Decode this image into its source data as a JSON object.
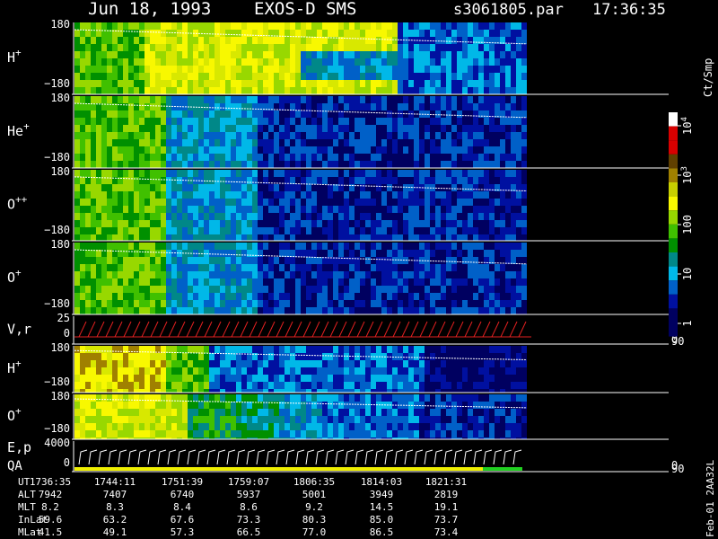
{
  "header": {
    "date": "Jun 18, 1993",
    "instrument": "EXOS-D SMS",
    "file": "s3061805.par",
    "time": "17:36:35"
  },
  "panels": [
    {
      "label": {
        "base": "H",
        "sup": "+"
      },
      "ytop": "180",
      "ybottom": "−180"
    },
    {
      "label": {
        "base": "He",
        "sup": "+"
      },
      "ytop": "180",
      "ybottom": "−180"
    },
    {
      "label": {
        "base": "O",
        "sup": "++"
      },
      "ytop": "180",
      "ybottom": "−180"
    },
    {
      "label": {
        "base": "O",
        "sup": "+"
      },
      "ytop": "180",
      "ybottom": "−180"
    },
    {
      "label": {
        "base": "V,r"
      },
      "ytop": "25",
      "ybottom": "0",
      "y2top": "90",
      "y2bottom": "0"
    },
    {
      "label": {
        "base": "H",
        "sup": "+"
      },
      "ytop": "180",
      "ybottom": "−180"
    },
    {
      "label": {
        "base": "O",
        "sup": "+"
      },
      "ytop": "180",
      "ybottom": "−180"
    },
    {
      "label": {
        "base": "E,p",
        "line2": "QA"
      },
      "ytop": "4000",
      "ybottom": "0",
      "y2top": "90",
      "y2bottom": "0"
    }
  ],
  "colorbar": {
    "title": "Ct/Smp",
    "ticks": [
      {
        "base": "10",
        "exp": "4"
      },
      {
        "base": "10",
        "exp": "3"
      },
      {
        "base": "100"
      },
      {
        "base": "10"
      },
      {
        "base": "1"
      }
    ]
  },
  "table": {
    "row_labels": [
      "UT",
      "ALT",
      "MLT",
      "InLat",
      "MLat"
    ],
    "rows": [
      [
        "1736:35",
        "1744:11",
        "1751:39",
        "1759:07",
        "1806:35",
        "1814:03",
        "1821:31"
      ],
      [
        "7942",
        "7407",
        "6740",
        "5937",
        "5001",
        "3949",
        "2819"
      ],
      [
        "8.2",
        "8.3",
        "8.4",
        "8.6",
        "9.2",
        "14.5",
        "19.1"
      ],
      [
        "59.6",
        "63.2",
        "67.6",
        "73.3",
        "80.3",
        "85.0",
        "73.7"
      ],
      [
        "41.5",
        "49.1",
        "57.3",
        "66.5",
        "77.0",
        "86.5",
        "73.4"
      ]
    ]
  },
  "footer": "Feb-01 2AA32L"
}
